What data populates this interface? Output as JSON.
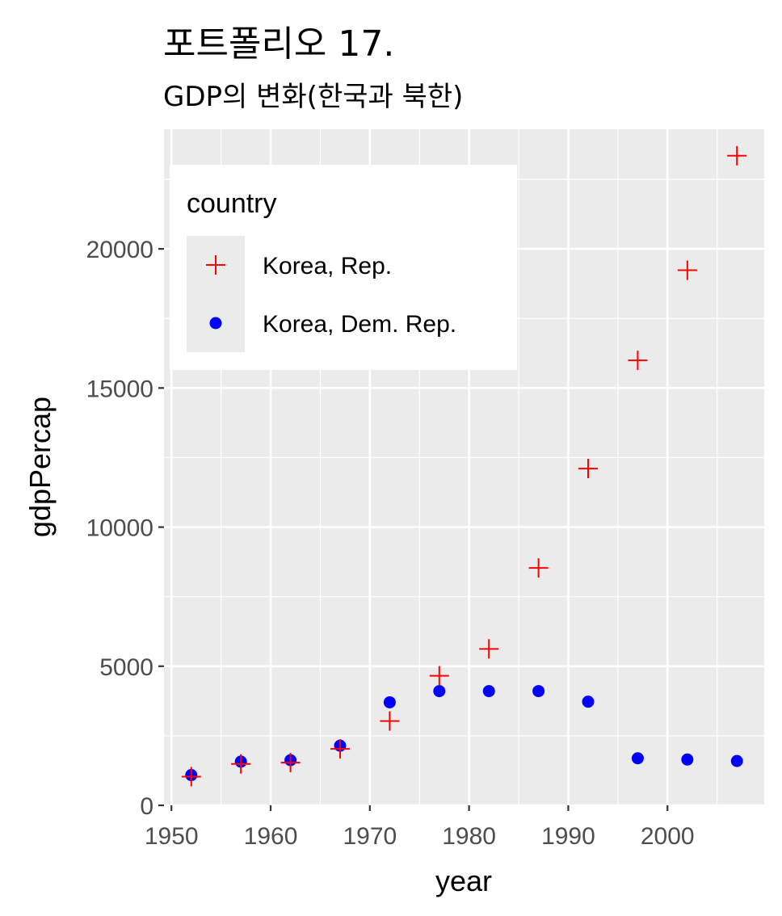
{
  "title": "포트폴리오 17.",
  "subtitle": "GDP의 변화(한국과 북한)",
  "chart_data": {
    "type": "scatter",
    "xlabel": "year",
    "ylabel": "gdpPercap",
    "xlim": [
      1949.25,
      2009.75
    ],
    "ylim": [
      0,
      24300
    ],
    "x_ticks": [
      1950,
      1960,
      1970,
      1980,
      1990,
      2000
    ],
    "y_ticks": [
      0,
      5000,
      10000,
      15000,
      20000
    ],
    "grid": true,
    "legend": {
      "title": "country",
      "position": "top-left"
    },
    "x": [
      1952,
      1957,
      1962,
      1967,
      1972,
      1977,
      1982,
      1987,
      1992,
      1997,
      2002,
      2007
    ],
    "series": [
      {
        "name": "Korea, Rep.",
        "color": "#ff0000",
        "shape": "plus",
        "values": [
          1031,
          1488,
          1536,
          2029,
          3031,
          4657,
          5623,
          8533,
          12104,
          15994,
          19234,
          23348
        ]
      },
      {
        "name": "Korea, Dem. Rep.",
        "color": "#0000ff",
        "shape": "circle",
        "values": [
          1088,
          1571,
          1622,
          2144,
          3702,
          4106,
          4106,
          4106,
          3726,
          1691,
          1647,
          1593
        ]
      }
    ]
  }
}
